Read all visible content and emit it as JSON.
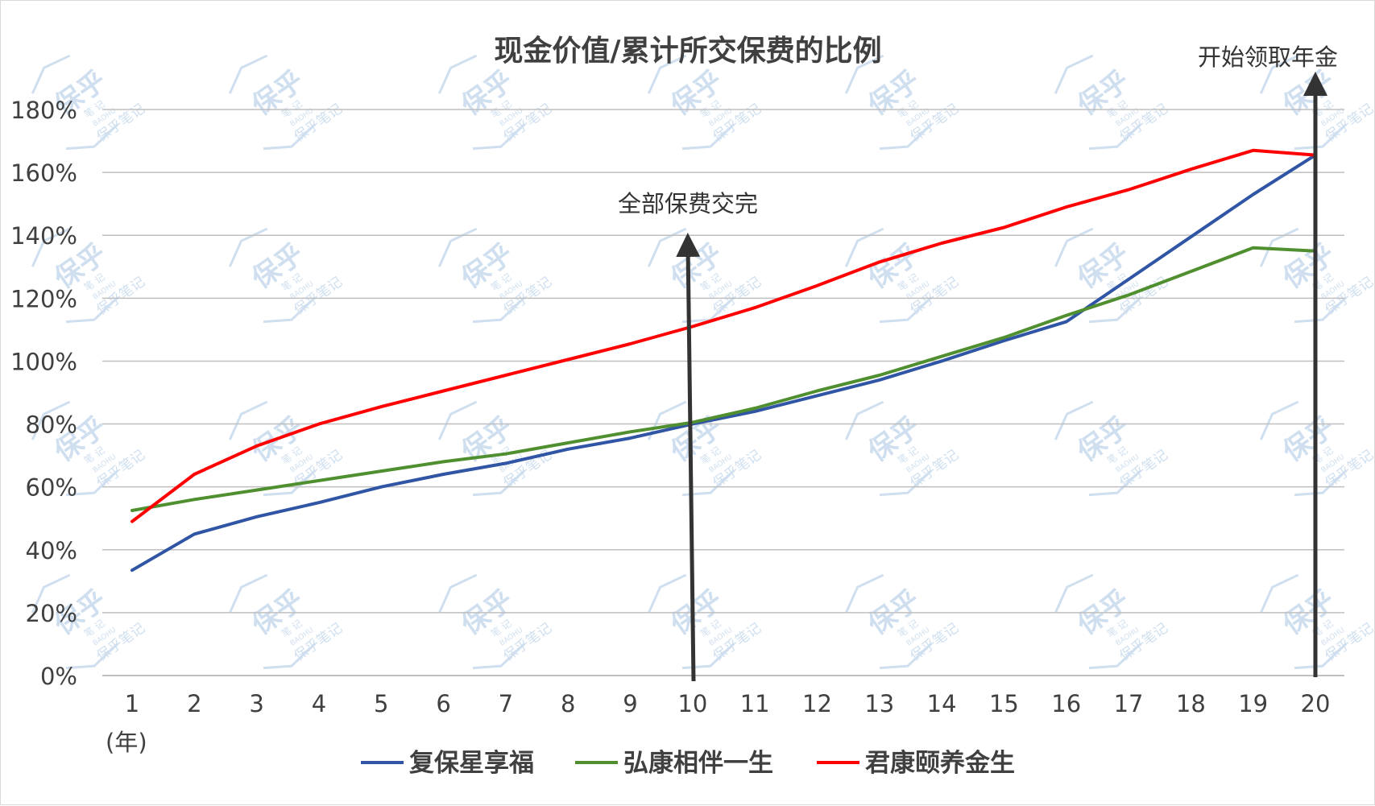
{
  "chart_data": {
    "type": "line",
    "title": "现金价值/累计所交保费的比例",
    "x_unit_label": "(年)",
    "x": [
      1,
      2,
      3,
      4,
      5,
      6,
      7,
      8,
      9,
      10,
      11,
      12,
      13,
      14,
      15,
      16,
      17,
      18,
      19,
      20
    ],
    "y_ticks": [
      "0%",
      "20%",
      "40%",
      "60%",
      "80%",
      "100%",
      "120%",
      "140%",
      "160%",
      "180%"
    ],
    "ylim": [
      0,
      180
    ],
    "grid": true,
    "legend_position": "bottom",
    "series": [
      {
        "name": "复保星享福",
        "color": "#2f55a4",
        "values": [
          33.5,
          45,
          50.5,
          55,
          60,
          64,
          67.5,
          72,
          75.5,
          80,
          84,
          89,
          94,
          100,
          106.5,
          112.5,
          126,
          139.5,
          153,
          165.5
        ]
      },
      {
        "name": "弘康相伴一生",
        "color": "#4f8f2f",
        "values": [
          52.5,
          56,
          59,
          62,
          65,
          68,
          70.5,
          74,
          77.5,
          80.5,
          85,
          90.5,
          95.5,
          101.5,
          107.5,
          114.5,
          121,
          128.5,
          136,
          135
        ]
      },
      {
        "name": "君康颐养金生",
        "color": "#ff0000",
        "values": [
          49,
          64,
          73,
          80,
          85.5,
          90.5,
          95.5,
          100.5,
          105.5,
          111,
          117,
          124,
          131.5,
          137.5,
          142.5,
          149,
          154.5,
          161,
          167,
          165.5
        ]
      }
    ],
    "annotations": [
      {
        "text": "全部保费交完",
        "at_x": 10
      },
      {
        "text": "开始领取年金",
        "at_x": 20
      }
    ],
    "watermark": {
      "text": "保乎",
      "sub_text": "保乎笔记",
      "small_text": "BAOHU",
      "note_text": "笔 记"
    }
  }
}
